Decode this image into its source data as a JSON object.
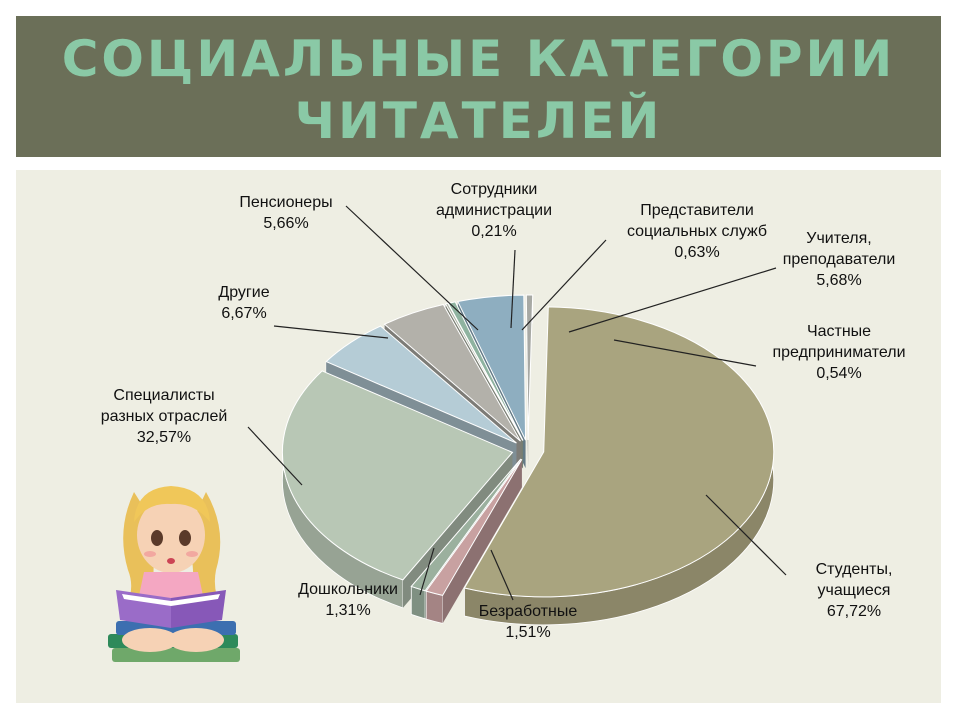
{
  "header": {
    "title_line1": "СОЦИАЛЬНЫЕ КАТЕГОРИИ",
    "title_line2": "ЧИТАТЕЛЕЙ"
  },
  "chart_data": {
    "type": "pie",
    "series": [
      {
        "values": [
          {
            "label_lines": [
              "Студенты,",
              "учащиеся"
            ],
            "value_text": "67,72%",
            "value": 67.72,
            "color": "#a9a47f"
          },
          {
            "label_lines": [
              "Безработные"
            ],
            "value_text": "1,51%",
            "value": 1.51,
            "color": "#c8a1a1"
          },
          {
            "label_lines": [
              "Дошкольники"
            ],
            "value_text": "1,31%",
            "value": 1.31,
            "color": "#9bb09e"
          },
          {
            "label_lines": [
              "Специалисты",
              "разных отраслей"
            ],
            "value_text": "32,57%",
            "value": 32.57,
            "color": "#b8c7b5"
          },
          {
            "label_lines": [
              "Другие"
            ],
            "value_text": "6,67%",
            "value": 6.67,
            "color": "#b5ccd6"
          },
          {
            "label_lines": [
              "Пенсионеры"
            ],
            "value_text": "5,66%",
            "value": 5.66,
            "color": "#b3b1aa"
          },
          {
            "label_lines": [
              "Сотрудники",
              "администрации"
            ],
            "value_text": "0,21%",
            "value": 0.21,
            "color": "#aeb4a5"
          },
          {
            "label_lines": [
              "Представители",
              "социальных служб"
            ],
            "value_text": "0,63%",
            "value": 0.63,
            "color": "#8fb3a0"
          },
          {
            "label_lines": [
              "Учителя,",
              "преподаватели"
            ],
            "value_text": "5,68%",
            "value": 5.68,
            "color": "#8eaec0"
          },
          {
            "label_lines": [
              "Частные",
              "предприниматели"
            ],
            "value_text": "0,54%",
            "value": 0.54,
            "color": "#a7a9a4"
          }
        ]
      }
    ],
    "legend": "none",
    "style": "3d-exploded"
  }
}
